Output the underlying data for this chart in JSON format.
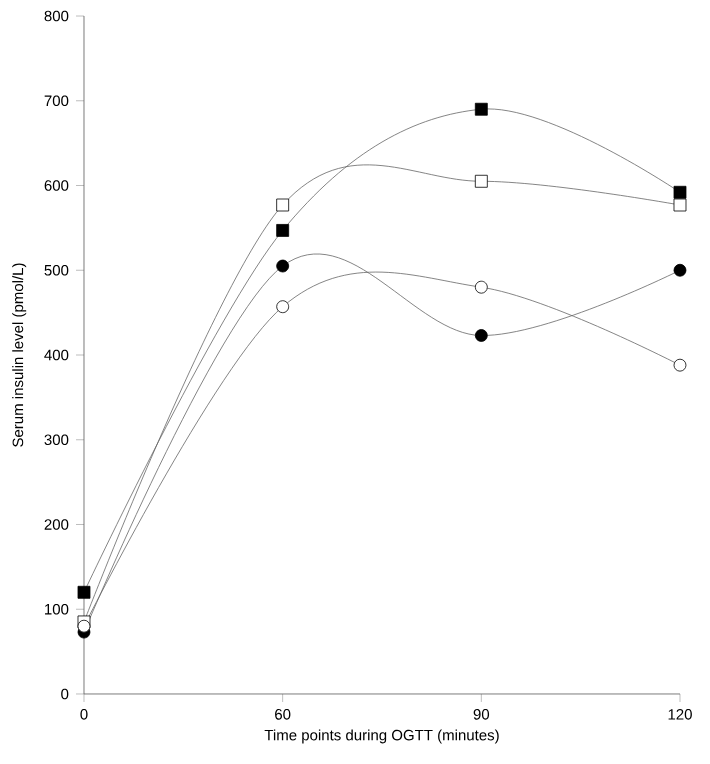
{
  "chart_data": {
    "type": "line",
    "xlabel": "Time points during OGTT (minutes)",
    "ylabel": "Serum insulin level  (pmol/L)",
    "categories": [
      "0",
      "60",
      "90",
      "120"
    ],
    "ylim": [
      0,
      800
    ],
    "yticks": [
      0,
      100,
      200,
      300,
      400,
      500,
      600,
      700,
      800
    ],
    "grid": false,
    "series": [
      {
        "color": "#000000",
        "marker": "square",
        "values": [
          120,
          547,
          690,
          592
        ]
      },
      {
        "color": "#ffffff",
        "marker": "square",
        "values": [
          85,
          577,
          605,
          577
        ]
      },
      {
        "color": "#000000",
        "marker": "circle",
        "values": [
          73,
          505,
          423,
          500
        ]
      },
      {
        "color": "#ffffff",
        "marker": "circle",
        "values": [
          80,
          457,
          480,
          388
        ]
      }
    ]
  }
}
